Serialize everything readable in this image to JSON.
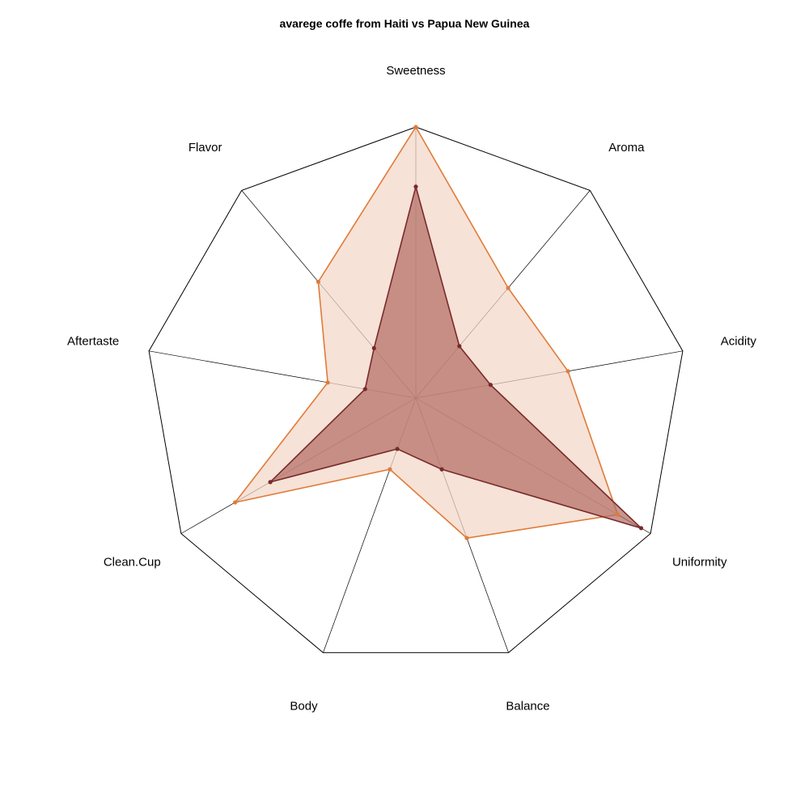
{
  "chart_data": {
    "type": "radar",
    "title": "avarege coffe from Haiti vs Papua New Guinea",
    "categories": [
      "Sweetness",
      "Aroma",
      "Acidity",
      "Uniformity",
      "Balance",
      "Body",
      "Clean.Cup",
      "Aftertaste",
      "Flavor"
    ],
    "range": [
      0,
      1
    ],
    "grid": "outer-ring-and-spokes",
    "legend": "none",
    "series": [
      {
        "color": "#e07b39",
        "fill": "#f3d7c7",
        "values": [
          1.0,
          0.53,
          0.57,
          0.86,
          0.55,
          0.28,
          0.77,
          0.33,
          0.56
        ]
      },
      {
        "color": "#7a2a2a",
        "fill": "#b36d64",
        "values": [
          0.78,
          0.25,
          0.28,
          0.96,
          0.28,
          0.2,
          0.62,
          0.19,
          0.24
        ]
      }
    ]
  }
}
